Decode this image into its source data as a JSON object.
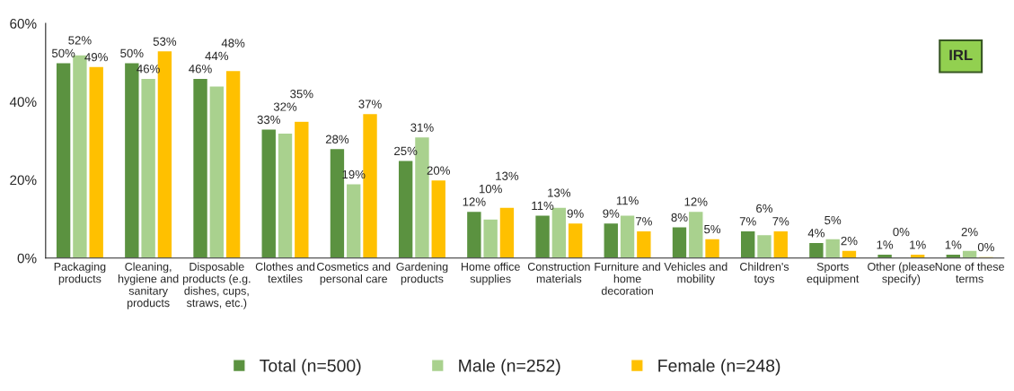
{
  "chart_data": {
    "type": "bar",
    "categories": [
      "Packaging products",
      "Cleaning, hygiene and sanitary products",
      "Disposable products (e.g. dishes, cups, straws, etc.)",
      "Clothes and textiles",
      "Cosmetics and personal care",
      "Gardening products",
      "Home office supplies",
      "Construction materials",
      "Furniture and home decoration",
      "Vehicles and mobility",
      "Children's toys",
      "Sports equipment",
      "Other (please specify)",
      "None of these terms"
    ],
    "series": [
      {
        "name": "Total (n=500)",
        "color": "#5b9240",
        "values": [
          50,
          50,
          46,
          33,
          28,
          25,
          12,
          11,
          9,
          8,
          7,
          4,
          1,
          1
        ],
        "value_labels": [
          "50%",
          "50%",
          "46%",
          "33%",
          "28%",
          "25%",
          "12%",
          "11%",
          "9%",
          "8%",
          "7%",
          "4%",
          "1%",
          "1%"
        ]
      },
      {
        "name": "Male (n=252)",
        "color": "#a9d18e",
        "values": [
          52,
          46,
          44,
          32,
          19,
          31,
          10,
          13,
          11,
          12,
          6,
          5,
          0.3,
          2
        ],
        "value_labels": [
          "52%",
          "46%",
          "44%",
          "32%",
          "19%",
          "31%",
          "10%",
          "13%",
          "11%",
          "12%",
          "6%",
          "5%",
          "0%",
          "2%"
        ]
      },
      {
        "name": "Female (n=248)",
        "color": "#ffc000",
        "values": [
          49,
          53,
          48,
          35,
          37,
          20,
          13,
          9,
          7,
          5,
          7,
          2,
          1,
          0.4
        ],
        "value_labels": [
          "49%",
          "53%",
          "48%",
          "35%",
          "37%",
          "20%",
          "13%",
          "9%",
          "7%",
          "5%",
          "7%",
          "2%",
          "1%",
          "0%"
        ]
      }
    ],
    "ylim": [
      0,
      60
    ],
    "yticks": [
      {
        "value": 0,
        "label": "0%"
      },
      {
        "value": 20,
        "label": "20%"
      },
      {
        "value": 40,
        "label": "40%"
      },
      {
        "value": 60,
        "label": "60%"
      }
    ],
    "annotations": [
      "IRL"
    ],
    "legend": "bottom",
    "grid": false
  }
}
